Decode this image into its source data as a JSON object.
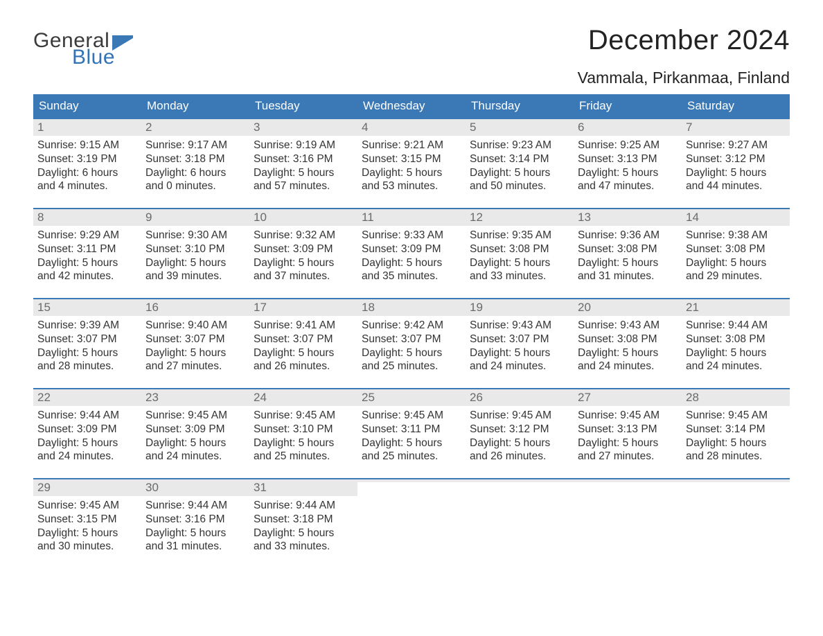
{
  "brand": {
    "word1": "General",
    "word2": "Blue",
    "word1_color": "#3b3b3b",
    "word2_color": "#3173b6",
    "flag_color": "#3a78b6"
  },
  "title": {
    "month": "December 2024",
    "location": "Vammala, Pirkanmaa, Finland",
    "title_fontsize": 40,
    "location_fontsize": 23
  },
  "colors": {
    "header_bg": "#3a78b6",
    "header_text": "#ffffff",
    "week_border": "#3a78b6",
    "daynum_bg": "#e9e9e9",
    "daynum_text": "#6a6a6a",
    "body_text": "#333333",
    "background": "#ffffff"
  },
  "typography": {
    "font_family": "Arial, Helvetica, sans-serif",
    "dow_fontsize": 17,
    "daynum_fontsize": 17,
    "body_fontsize": 15.5
  },
  "days_of_week": [
    "Sunday",
    "Monday",
    "Tuesday",
    "Wednesday",
    "Thursday",
    "Friday",
    "Saturday"
  ],
  "weeks": [
    [
      {
        "n": "1",
        "sunrise": "Sunrise: 9:15 AM",
        "sunset": "Sunset: 3:19 PM",
        "d1": "Daylight: 6 hours",
        "d2": "and 4 minutes."
      },
      {
        "n": "2",
        "sunrise": "Sunrise: 9:17 AM",
        "sunset": "Sunset: 3:18 PM",
        "d1": "Daylight: 6 hours",
        "d2": "and 0 minutes."
      },
      {
        "n": "3",
        "sunrise": "Sunrise: 9:19 AM",
        "sunset": "Sunset: 3:16 PM",
        "d1": "Daylight: 5 hours",
        "d2": "and 57 minutes."
      },
      {
        "n": "4",
        "sunrise": "Sunrise: 9:21 AM",
        "sunset": "Sunset: 3:15 PM",
        "d1": "Daylight: 5 hours",
        "d2": "and 53 minutes."
      },
      {
        "n": "5",
        "sunrise": "Sunrise: 9:23 AM",
        "sunset": "Sunset: 3:14 PM",
        "d1": "Daylight: 5 hours",
        "d2": "and 50 minutes."
      },
      {
        "n": "6",
        "sunrise": "Sunrise: 9:25 AM",
        "sunset": "Sunset: 3:13 PM",
        "d1": "Daylight: 5 hours",
        "d2": "and 47 minutes."
      },
      {
        "n": "7",
        "sunrise": "Sunrise: 9:27 AM",
        "sunset": "Sunset: 3:12 PM",
        "d1": "Daylight: 5 hours",
        "d2": "and 44 minutes."
      }
    ],
    [
      {
        "n": "8",
        "sunrise": "Sunrise: 9:29 AM",
        "sunset": "Sunset: 3:11 PM",
        "d1": "Daylight: 5 hours",
        "d2": "and 42 minutes."
      },
      {
        "n": "9",
        "sunrise": "Sunrise: 9:30 AM",
        "sunset": "Sunset: 3:10 PM",
        "d1": "Daylight: 5 hours",
        "d2": "and 39 minutes."
      },
      {
        "n": "10",
        "sunrise": "Sunrise: 9:32 AM",
        "sunset": "Sunset: 3:09 PM",
        "d1": "Daylight: 5 hours",
        "d2": "and 37 minutes."
      },
      {
        "n": "11",
        "sunrise": "Sunrise: 9:33 AM",
        "sunset": "Sunset: 3:09 PM",
        "d1": "Daylight: 5 hours",
        "d2": "and 35 minutes."
      },
      {
        "n": "12",
        "sunrise": "Sunrise: 9:35 AM",
        "sunset": "Sunset: 3:08 PM",
        "d1": "Daylight: 5 hours",
        "d2": "and 33 minutes."
      },
      {
        "n": "13",
        "sunrise": "Sunrise: 9:36 AM",
        "sunset": "Sunset: 3:08 PM",
        "d1": "Daylight: 5 hours",
        "d2": "and 31 minutes."
      },
      {
        "n": "14",
        "sunrise": "Sunrise: 9:38 AM",
        "sunset": "Sunset: 3:08 PM",
        "d1": "Daylight: 5 hours",
        "d2": "and 29 minutes."
      }
    ],
    [
      {
        "n": "15",
        "sunrise": "Sunrise: 9:39 AM",
        "sunset": "Sunset: 3:07 PM",
        "d1": "Daylight: 5 hours",
        "d2": "and 28 minutes."
      },
      {
        "n": "16",
        "sunrise": "Sunrise: 9:40 AM",
        "sunset": "Sunset: 3:07 PM",
        "d1": "Daylight: 5 hours",
        "d2": "and 27 minutes."
      },
      {
        "n": "17",
        "sunrise": "Sunrise: 9:41 AM",
        "sunset": "Sunset: 3:07 PM",
        "d1": "Daylight: 5 hours",
        "d2": "and 26 minutes."
      },
      {
        "n": "18",
        "sunrise": "Sunrise: 9:42 AM",
        "sunset": "Sunset: 3:07 PM",
        "d1": "Daylight: 5 hours",
        "d2": "and 25 minutes."
      },
      {
        "n": "19",
        "sunrise": "Sunrise: 9:43 AM",
        "sunset": "Sunset: 3:07 PM",
        "d1": "Daylight: 5 hours",
        "d2": "and 24 minutes."
      },
      {
        "n": "20",
        "sunrise": "Sunrise: 9:43 AM",
        "sunset": "Sunset: 3:08 PM",
        "d1": "Daylight: 5 hours",
        "d2": "and 24 minutes."
      },
      {
        "n": "21",
        "sunrise": "Sunrise: 9:44 AM",
        "sunset": "Sunset: 3:08 PM",
        "d1": "Daylight: 5 hours",
        "d2": "and 24 minutes."
      }
    ],
    [
      {
        "n": "22",
        "sunrise": "Sunrise: 9:44 AM",
        "sunset": "Sunset: 3:09 PM",
        "d1": "Daylight: 5 hours",
        "d2": "and 24 minutes."
      },
      {
        "n": "23",
        "sunrise": "Sunrise: 9:45 AM",
        "sunset": "Sunset: 3:09 PM",
        "d1": "Daylight: 5 hours",
        "d2": "and 24 minutes."
      },
      {
        "n": "24",
        "sunrise": "Sunrise: 9:45 AM",
        "sunset": "Sunset: 3:10 PM",
        "d1": "Daylight: 5 hours",
        "d2": "and 25 minutes."
      },
      {
        "n": "25",
        "sunrise": "Sunrise: 9:45 AM",
        "sunset": "Sunset: 3:11 PM",
        "d1": "Daylight: 5 hours",
        "d2": "and 25 minutes."
      },
      {
        "n": "26",
        "sunrise": "Sunrise: 9:45 AM",
        "sunset": "Sunset: 3:12 PM",
        "d1": "Daylight: 5 hours",
        "d2": "and 26 minutes."
      },
      {
        "n": "27",
        "sunrise": "Sunrise: 9:45 AM",
        "sunset": "Sunset: 3:13 PM",
        "d1": "Daylight: 5 hours",
        "d2": "and 27 minutes."
      },
      {
        "n": "28",
        "sunrise": "Sunrise: 9:45 AM",
        "sunset": "Sunset: 3:14 PM",
        "d1": "Daylight: 5 hours",
        "d2": "and 28 minutes."
      }
    ],
    [
      {
        "n": "29",
        "sunrise": "Sunrise: 9:45 AM",
        "sunset": "Sunset: 3:15 PM",
        "d1": "Daylight: 5 hours",
        "d2": "and 30 minutes."
      },
      {
        "n": "30",
        "sunrise": "Sunrise: 9:44 AM",
        "sunset": "Sunset: 3:16 PM",
        "d1": "Daylight: 5 hours",
        "d2": "and 31 minutes."
      },
      {
        "n": "31",
        "sunrise": "Sunrise: 9:44 AM",
        "sunset": "Sunset: 3:18 PM",
        "d1": "Daylight: 5 hours",
        "d2": "and 33 minutes."
      },
      {
        "empty": true
      },
      {
        "empty": true
      },
      {
        "empty": true
      },
      {
        "empty": true
      }
    ]
  ]
}
